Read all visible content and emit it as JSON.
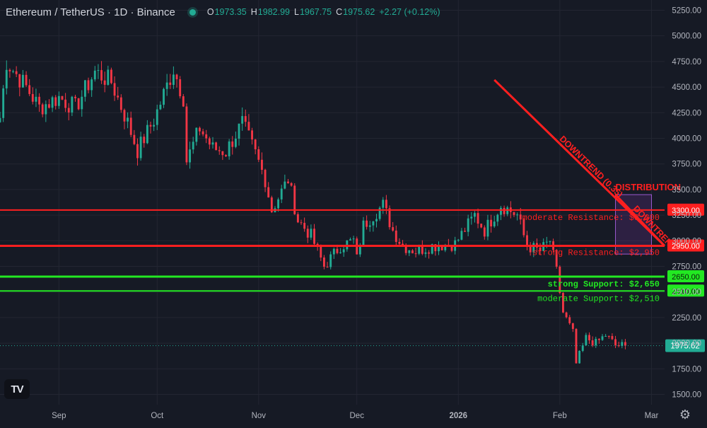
{
  "header": {
    "symbol_title": "Ethereum / TetherUS · 1D · Binance",
    "ohlc": [
      {
        "key": "O",
        "value": "1973.35"
      },
      {
        "key": "H",
        "value": "1982.99"
      },
      {
        "key": "L",
        "value": "1967.75"
      },
      {
        "key": "C",
        "value": "1975.62"
      },
      {
        "key": "",
        "value": "+2.27 (+0.12%)"
      }
    ]
  },
  "logo": {
    "text": "TV"
  },
  "colors": {
    "background": "#161a25",
    "up": "#22ab94",
    "down": "#f23645",
    "resistance": "#ff1f1f",
    "support": "#22e822",
    "grid": "#232632",
    "axis_text": "#b2b5be"
  },
  "chart_data": {
    "type": "candlestick",
    "title": "",
    "xlabel": "",
    "ylabel": "",
    "ylim": [
      1400,
      5350
    ],
    "y_ticks": [
      "1500.00",
      "1750.00",
      "2000.00",
      "2250.00",
      "2500.00",
      "2750.00",
      "3000.00",
      "3250.00",
      "3500.00",
      "3750.00",
      "4000.00",
      "4250.00",
      "4500.00",
      "4750.00",
      "5000.00",
      "5250.00"
    ],
    "x_ticks": [
      {
        "label": "Sep",
        "date": "2025-09-01"
      },
      {
        "label": "Oct",
        "date": "2025-10-01"
      },
      {
        "label": "Nov",
        "date": "2025-11-01"
      },
      {
        "label": "Dec",
        "date": "2025-12-01"
      },
      {
        "label": "2026",
        "date": "2026-01-01"
      },
      {
        "label": "Feb",
        "date": "2026-02-01"
      },
      {
        "label": "Mar",
        "date": "2026-03-01"
      }
    ],
    "x_range": [
      "2025-08-14",
      "2026-03-05"
    ],
    "grid": true,
    "last_price": {
      "label": "1975.62",
      "value": 1975.62
    },
    "price_checkpoints": [
      {
        "date": "2025-08-14",
        "close": 4200
      },
      {
        "date": "2025-08-16",
        "close": 4750
      },
      {
        "date": "2025-08-22",
        "close": 4500
      },
      {
        "date": "2025-08-26",
        "close": 4300
      },
      {
        "date": "2025-09-01",
        "close": 4400
      },
      {
        "date": "2025-09-06",
        "close": 4300
      },
      {
        "date": "2025-09-12",
        "close": 4650
      },
      {
        "date": "2025-09-17",
        "close": 4550
      },
      {
        "date": "2025-09-22",
        "close": 4150
      },
      {
        "date": "2025-09-25",
        "close": 3880
      },
      {
        "date": "2025-09-30",
        "close": 4180
      },
      {
        "date": "2025-10-06",
        "close": 4680
      },
      {
        "date": "2025-10-09",
        "close": 4400
      },
      {
        "date": "2025-10-10",
        "close": 3780
      },
      {
        "date": "2025-10-14",
        "close": 4100
      },
      {
        "date": "2025-10-18",
        "close": 3900
      },
      {
        "date": "2025-10-22",
        "close": 3870
      },
      {
        "date": "2025-10-27",
        "close": 4150
      },
      {
        "date": "2025-10-31",
        "close": 3850
      },
      {
        "date": "2025-11-03",
        "close": 3600
      },
      {
        "date": "2025-11-05",
        "close": 3300
      },
      {
        "date": "2025-11-10",
        "close": 3600
      },
      {
        "date": "2025-11-13",
        "close": 3200
      },
      {
        "date": "2025-11-17",
        "close": 3050
      },
      {
        "date": "2025-11-21",
        "close": 2750
      },
      {
        "date": "2025-11-26",
        "close": 2950
      },
      {
        "date": "2025-11-30",
        "close": 3000
      },
      {
        "date": "2025-12-01",
        "close": 2820
      },
      {
        "date": "2025-12-03",
        "close": 3150
      },
      {
        "date": "2025-12-09",
        "close": 3350
      },
      {
        "date": "2025-12-12",
        "close": 3100
      },
      {
        "date": "2025-12-15",
        "close": 2950
      },
      {
        "date": "2025-12-19",
        "close": 2900
      },
      {
        "date": "2025-12-24",
        "close": 2950
      },
      {
        "date": "2025-12-31",
        "close": 2970
      },
      {
        "date": "2026-01-06",
        "close": 3250
      },
      {
        "date": "2026-01-09",
        "close": 3100
      },
      {
        "date": "2026-01-14",
        "close": 3350
      },
      {
        "date": "2026-01-19",
        "close": 3250
      },
      {
        "date": "2026-01-22",
        "close": 2950
      },
      {
        "date": "2026-01-26",
        "close": 2900
      },
      {
        "date": "2026-01-29",
        "close": 3000
      },
      {
        "date": "2026-01-31",
        "close": 2700
      },
      {
        "date": "2026-02-02",
        "close": 2300
      },
      {
        "date": "2026-02-05",
        "close": 2100
      },
      {
        "date": "2026-02-06",
        "close": 1800
      },
      {
        "date": "2026-02-09",
        "close": 2050
      },
      {
        "date": "2026-02-12",
        "close": 2000
      },
      {
        "date": "2026-02-15",
        "close": 2080
      },
      {
        "date": "2026-02-18",
        "close": 1980
      },
      {
        "date": "2026-02-21",
        "close": 1975.62
      }
    ],
    "levels": [
      {
        "type": "resistance",
        "strength": "moderate",
        "price": 3300,
        "axis_label": "3300.00",
        "text": "moderate Resistance: $3,300"
      },
      {
        "type": "resistance",
        "strength": "strong",
        "price": 2950,
        "axis_label": "2950.00",
        "text": "strong Resistance: $2,950"
      },
      {
        "type": "support",
        "strength": "strong",
        "price": 2650,
        "axis_label": "2650.00",
        "text": "strong Support: $2,650"
      },
      {
        "type": "support",
        "strength": "moderate",
        "price": 2510,
        "axis_label": "2510.00",
        "text": "moderate Support: $2,510"
      }
    ],
    "trendlines": [
      {
        "label": "DOWNTREND (0.35)",
        "from": {
          "date": "2026-01-12",
          "price": 4570
        },
        "to": {
          "date": "2026-03-05",
          "price": 2950
        }
      },
      {
        "label": "DOWNTREND",
        "from": {
          "date": "2026-02-18",
          "price": 3450
        },
        "to": {
          "date": "2026-03-05",
          "price": 2950
        }
      }
    ],
    "zones": [
      {
        "label": "DISTRIBUTION",
        "from": {
          "date": "2026-02-18",
          "price": 3450
        },
        "to": {
          "date": "2026-03-01",
          "price": 2870
        }
      }
    ]
  }
}
